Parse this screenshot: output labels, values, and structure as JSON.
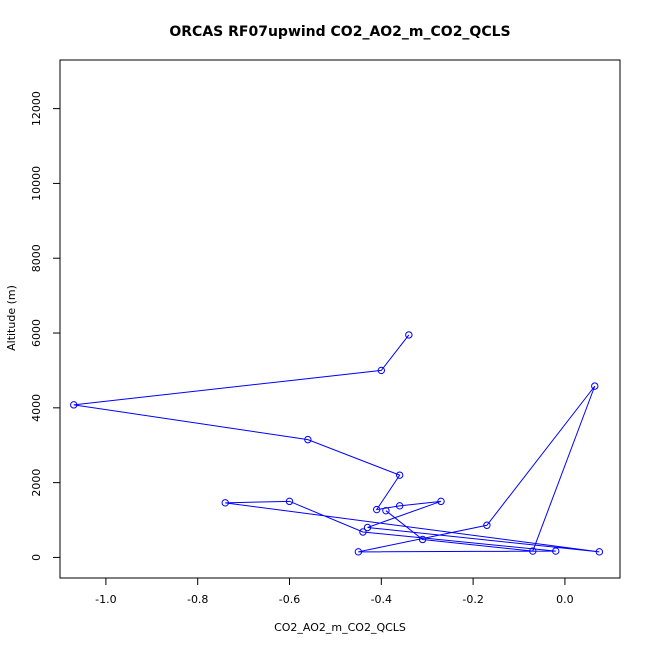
{
  "chart_data": {
    "type": "line",
    "title": "ORCAS RF07upwind CO2_AO2_m_CO2_QCLS",
    "xlabel": "CO2_AO2_m_CO2_QCLS",
    "ylabel": "Altitude (m)",
    "xlim": [
      -1.1,
      0.12
    ],
    "ylim": [
      -550,
      13300
    ],
    "x_ticks": [
      -1.0,
      -0.8,
      -0.6,
      -0.4,
      -0.2,
      0.0
    ],
    "x_tick_labels": [
      "-1.0",
      "-0.8",
      "-0.6",
      "-0.4",
      "-0.2",
      "0.0"
    ],
    "y_ticks": [
      0,
      2000,
      4000,
      6000,
      8000,
      10000,
      12000
    ],
    "y_tick_labels": [
      "0",
      "2000",
      "4000",
      "6000",
      "8000",
      "10000",
      "12000"
    ],
    "grid": false,
    "line_style": "lines with open circle markers",
    "color": "#0000ff",
    "series": [
      {
        "points": [
          {
            "x": -0.34,
            "y": 5950
          },
          {
            "x": -0.4,
            "y": 5000
          },
          {
            "x": -1.07,
            "y": 4080
          },
          {
            "x": -0.56,
            "y": 3150
          },
          {
            "x": -0.36,
            "y": 2200
          },
          {
            "x": -0.41,
            "y": 1280
          },
          {
            "x": -0.36,
            "y": 1380
          },
          {
            "x": -0.27,
            "y": 1500
          },
          {
            "x": -0.43,
            "y": 800
          },
          {
            "x": 0.075,
            "y": 150
          },
          {
            "x": -0.74,
            "y": 1460
          },
          {
            "x": -0.6,
            "y": 1500
          },
          {
            "x": -0.44,
            "y": 680
          },
          {
            "x": -0.02,
            "y": 170
          },
          {
            "x": -0.45,
            "y": 150
          },
          {
            "x": -0.17,
            "y": 860
          },
          {
            "x": 0.065,
            "y": 4580
          },
          {
            "x": -0.07,
            "y": 170
          },
          {
            "x": -0.31,
            "y": 480
          },
          {
            "x": -0.39,
            "y": 1250
          }
        ]
      }
    ]
  }
}
